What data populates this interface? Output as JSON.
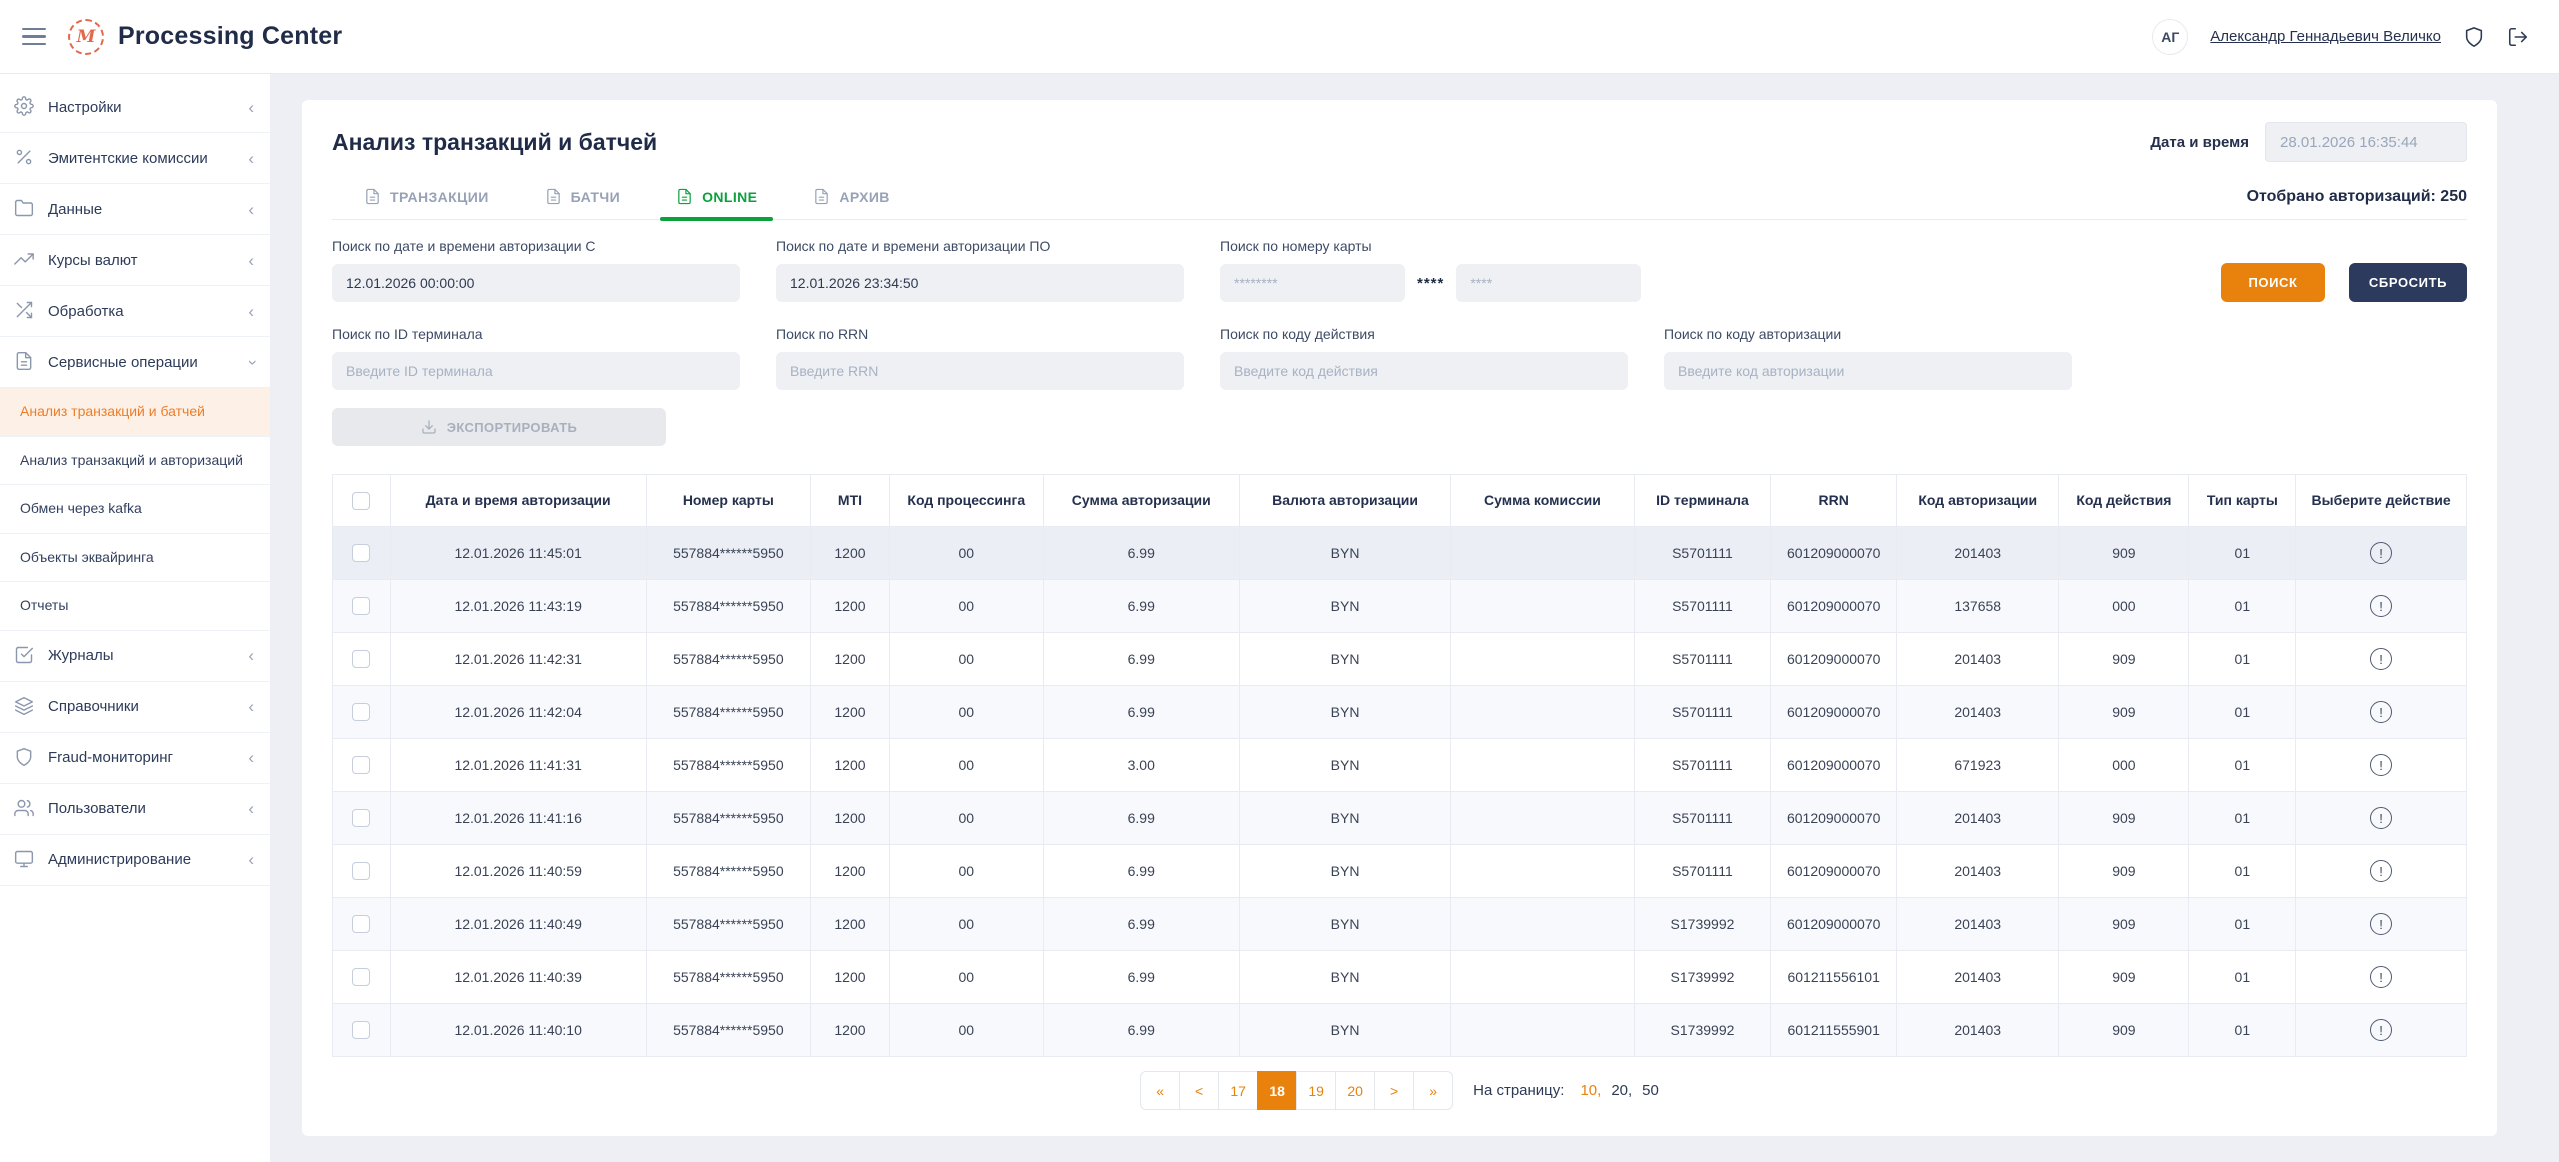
{
  "header": {
    "app_title": "Processing Center",
    "logo_monogram": "M",
    "user_initials": "АГ",
    "user_name": "Александр Геннадьевич Величко"
  },
  "sidebar": {
    "items": [
      {
        "label": "Настройки",
        "icon": "gear",
        "chevron": "left"
      },
      {
        "label": "Эмитентские комиссии",
        "icon": "percent",
        "chevron": "left"
      },
      {
        "label": "Данные",
        "icon": "folder",
        "chevron": "left"
      },
      {
        "label": "Курсы валют",
        "icon": "trend",
        "chevron": "left"
      },
      {
        "label": "Обработка",
        "icon": "shuffle",
        "chevron": "left"
      },
      {
        "label": "Сервисные операции",
        "icon": "document",
        "chevron": "down",
        "expanded": true,
        "children": [
          {
            "label": "Анализ транзакций и батчей",
            "active": true
          },
          {
            "label": "Анализ транзакций и авторизаций",
            "active": false
          },
          {
            "label": "Обмен через kafka",
            "active": false
          },
          {
            "label": "Объекты эквайринга",
            "active": false
          },
          {
            "label": "Отчеты",
            "active": false
          }
        ]
      },
      {
        "label": "Журналы",
        "icon": "journal",
        "chevron": "left"
      },
      {
        "label": "Справочники",
        "icon": "layers",
        "chevron": "left"
      },
      {
        "label": "Fraud-мониторинг",
        "icon": "shield",
        "chevron": "left"
      },
      {
        "label": "Пользователи",
        "icon": "users",
        "chevron": "left"
      },
      {
        "label": "Администрирование",
        "icon": "monitor",
        "chevron": "left"
      }
    ]
  },
  "page": {
    "title": "Анализ транзакций и батчей",
    "datetime_label": "Дата и время",
    "datetime_value": "28.01.2026 16:35:44",
    "selected_info": "Отобрано авторизаций: 250",
    "tabs": [
      {
        "label": "ТРАНЗАКЦИИ",
        "icon": "file",
        "active": false
      },
      {
        "label": "БАТЧИ",
        "icon": "file",
        "active": false
      },
      {
        "label": "ONLINE",
        "icon": "file",
        "active": true
      },
      {
        "label": "АРХИВ",
        "icon": "file",
        "active": false
      }
    ]
  },
  "filters": {
    "row1": [
      {
        "label": "Поиск по дате и времени авторизации С",
        "type": "text",
        "value": "12.01.2026 00:00:00",
        "placeholder": ""
      },
      {
        "label": "Поиск по дате и времени авторизации ПО",
        "type": "text",
        "value": "12.01.2026 23:34:50",
        "placeholder": ""
      },
      {
        "label": "Поиск по номеру карты",
        "type": "card",
        "placeholder_pan": "********",
        "mask": "****",
        "placeholder_tail": "****"
      }
    ],
    "row2": [
      {
        "label": "Поиск по ID терминала",
        "type": "text",
        "value": "",
        "placeholder": "Введите ID терминала"
      },
      {
        "label": "Поиск по RRN",
        "type": "text",
        "value": "",
        "placeholder": "Введите RRN"
      },
      {
        "label": "Поиск по коду действия",
        "type": "text",
        "value": "",
        "placeholder": "Введите код действия"
      },
      {
        "label": "Поиск по коду авторизации",
        "type": "text",
        "value": "",
        "placeholder": "Введите код авторизации"
      }
    ],
    "search_button": "ПОИСК",
    "reset_button": "СБРОСИТЬ",
    "export_button": "ЭКСПОРТИРОВАТЬ"
  },
  "table": {
    "columns": [
      "Дата и время авторизации",
      "Номер карты",
      "MTI",
      "Код процессинга",
      "Сумма авторизации",
      "Валюта авторизации",
      "Сумма комиссии",
      "ID терминала",
      "RRN",
      "Код авторизации",
      "Код действия",
      "Тип карты",
      "Выберите действие"
    ],
    "rows": [
      {
        "cells": [
          "12.01.2026 11:45:01",
          "557884******5950",
          "1200",
          "00",
          "6.99",
          "BYN",
          "",
          "S5701111",
          "601209000070",
          "201403",
          "909",
          "01"
        ],
        "highlight": true
      },
      {
        "cells": [
          "12.01.2026 11:43:19",
          "557884******5950",
          "1200",
          "00",
          "6.99",
          "BYN",
          "",
          "S5701111",
          "601209000070",
          "137658",
          "000",
          "01"
        ],
        "highlight": false
      },
      {
        "cells": [
          "12.01.2026 11:42:31",
          "557884******5950",
          "1200",
          "00",
          "6.99",
          "BYN",
          "",
          "S5701111",
          "601209000070",
          "201403",
          "909",
          "01"
        ],
        "highlight": false
      },
      {
        "cells": [
          "12.01.2026 11:42:04",
          "557884******5950",
          "1200",
          "00",
          "6.99",
          "BYN",
          "",
          "S5701111",
          "601209000070",
          "201403",
          "909",
          "01"
        ],
        "highlight": false
      },
      {
        "cells": [
          "12.01.2026 11:41:31",
          "557884******5950",
          "1200",
          "00",
          "3.00",
          "BYN",
          "",
          "S5701111",
          "601209000070",
          "671923",
          "000",
          "01"
        ],
        "highlight": false
      },
      {
        "cells": [
          "12.01.2026 11:41:16",
          "557884******5950",
          "1200",
          "00",
          "6.99",
          "BYN",
          "",
          "S5701111",
          "601209000070",
          "201403",
          "909",
          "01"
        ],
        "highlight": false
      },
      {
        "cells": [
          "12.01.2026 11:40:59",
          "557884******5950",
          "1200",
          "00",
          "6.99",
          "BYN",
          "",
          "S5701111",
          "601209000070",
          "201403",
          "909",
          "01"
        ],
        "highlight": false
      },
      {
        "cells": [
          "12.01.2026 11:40:49",
          "557884******5950",
          "1200",
          "00",
          "6.99",
          "BYN",
          "",
          "S1739992",
          "601209000070",
          "201403",
          "909",
          "01"
        ],
        "highlight": false
      },
      {
        "cells": [
          "12.01.2026 11:40:39",
          "557884******5950",
          "1200",
          "00",
          "6.99",
          "BYN",
          "",
          "S1739992",
          "601211556101",
          "201403",
          "909",
          "01"
        ],
        "highlight": false
      },
      {
        "cells": [
          "12.01.2026 11:40:10",
          "557884******5950",
          "1200",
          "00",
          "6.99",
          "BYN",
          "",
          "S1739992",
          "601211555901",
          "201403",
          "909",
          "01"
        ],
        "highlight": false
      }
    ]
  },
  "pagination": {
    "buttons": [
      {
        "label": "«",
        "active": false
      },
      {
        "label": "<",
        "active": false
      },
      {
        "label": "17",
        "active": false
      },
      {
        "label": "18",
        "active": true
      },
      {
        "label": "19",
        "active": false
      },
      {
        "label": "20",
        "active": false
      },
      {
        "label": ">",
        "active": false
      },
      {
        "label": "»",
        "active": false
      }
    ],
    "per_page_label": "На страницу:",
    "per_page_options": [
      {
        "label": "10",
        "active": true
      },
      {
        "label": "20",
        "active": false
      },
      {
        "label": "50",
        "active": false
      }
    ]
  },
  "colors": {
    "accent_orange": "#e8820c",
    "sidebar_active_text": "#ee7c26",
    "sidebar_active_bg": "#fdf1e7",
    "active_tab_green": "#0ba23c",
    "dark_button": "#2c3a5e",
    "logo_coral": "#e4684a"
  }
}
